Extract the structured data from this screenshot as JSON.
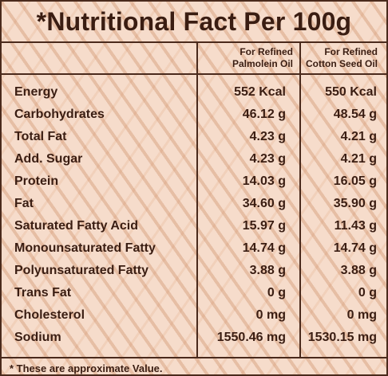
{
  "title": "*Nutritional Fact Per 100g",
  "columns": [
    {
      "line1": "For Refined",
      "line2": "Palmolein Oil"
    },
    {
      "line1": "For Refined",
      "line2": "Cotton Seed Oil"
    }
  ],
  "rows": [
    {
      "label": "Energy",
      "v1": "552 Kcal",
      "v2": "550 Kcal"
    },
    {
      "label": "Carbohydrates",
      "v1": "46.12 g",
      "v2": "48.54 g"
    },
    {
      "label": "Total Fat",
      "v1": "4.23 g",
      "v2": "4.21 g"
    },
    {
      "label": "Add. Sugar",
      "v1": "4.23 g",
      "v2": "4.21 g"
    },
    {
      "label": "Protein",
      "v1": "14.03 g",
      "v2": "16.05 g"
    },
    {
      "label": "Fat",
      "v1": "34.60 g",
      "v2": "35.90 g"
    },
    {
      "label": "Saturated Fatty Acid",
      "v1": "15.97 g",
      "v2": "11.43 g"
    },
    {
      "label": "Monounsaturated Fatty",
      "v1": "14.74 g",
      "v2": "14.74 g"
    },
    {
      "label": "Polyunsaturated Fatty",
      "v1": "3.88 g",
      "v2": "3.88 g"
    },
    {
      "label": "Trans Fat",
      "v1": "0 g",
      "v2": "0 g"
    },
    {
      "label": "Cholesterol",
      "v1": "0 mg",
      "v2": "0 mg"
    },
    {
      "label": "Sodium",
      "v1": "1550.46 mg",
      "v2": "1530.15 mg"
    }
  ],
  "footnote": "* These are approximate Value.",
  "colors": {
    "border": "#4a2a1c",
    "text": "#3a1d12",
    "background": "#f6dccb"
  }
}
